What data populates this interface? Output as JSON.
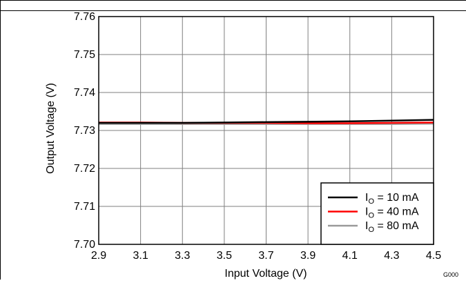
{
  "chart_data": {
    "type": "line",
    "title": "",
    "xlabel": "Input Voltage (V)",
    "ylabel": "Output Voltage (V)",
    "xlim": [
      2.9,
      4.5
    ],
    "ylim": [
      7.7,
      7.76
    ],
    "xticks": [
      "2.9",
      "3.1",
      "3.3",
      "3.5",
      "3.7",
      "3.9",
      "4.1",
      "4.3",
      "4.5"
    ],
    "yticks": [
      "7.70",
      "7.71",
      "7.72",
      "7.73",
      "7.74",
      "7.75",
      "7.76"
    ],
    "grid": true,
    "legend_position": "bottom-right",
    "figure_id": "G000",
    "x": [
      2.9,
      3.1,
      3.3,
      3.5,
      3.7,
      3.9,
      4.1,
      4.3,
      4.5
    ],
    "series": [
      {
        "label_main": "I",
        "label_sub": "O",
        "label_rest": " = 10 mA",
        "color": "#000000",
        "values": [
          7.732,
          7.732,
          7.732,
          7.7321,
          7.7322,
          7.7323,
          7.7324,
          7.7326,
          7.7328
        ]
      },
      {
        "label_main": "I",
        "label_sub": "O",
        "label_rest": " = 40 mA",
        "color": "#ff0000",
        "values": [
          7.7321,
          7.7321,
          7.732,
          7.732,
          7.732,
          7.7319,
          7.7319,
          7.732,
          7.7321
        ]
      },
      {
        "label_main": "I",
        "label_sub": "O",
        "label_rest": " = 80 mA",
        "color": "#999999",
        "values": [
          7.7317,
          7.7317,
          7.7317,
          7.7317,
          7.7317,
          7.7317,
          7.7317,
          7.7317,
          7.7318
        ]
      }
    ]
  }
}
